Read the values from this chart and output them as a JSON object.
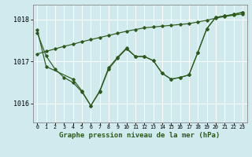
{
  "bg_color": "#d0eaed",
  "grid_color": "#ffffff",
  "line_color": "#2d5a1b",
  "title": "Graphe pression niveau de la mer (hPa)",
  "title_fontsize": 6.5,
  "xlim": [
    -0.5,
    23.5
  ],
  "ylim": [
    1015.55,
    1018.35
  ],
  "yticks": [
    1016,
    1017,
    1018
  ],
  "ytick_labels": [
    "1016",
    "1017",
    "1018"
  ],
  "xticks": [
    0,
    1,
    2,
    3,
    4,
    5,
    6,
    7,
    8,
    9,
    10,
    11,
    12,
    13,
    14,
    15,
    16,
    17,
    18,
    19,
    20,
    21,
    22,
    23
  ],
  "line_a_x": [
    0,
    1,
    2,
    3,
    4,
    5,
    6,
    7,
    8,
    9,
    10,
    11,
    12,
    13,
    14,
    15,
    16,
    17,
    18,
    19,
    20,
    21,
    22,
    23
  ],
  "line_a_y": [
    1017.18,
    1017.24,
    1017.3,
    1017.36,
    1017.41,
    1017.47,
    1017.52,
    1017.57,
    1017.62,
    1017.67,
    1017.72,
    1017.76,
    1017.8,
    1017.82,
    1017.84,
    1017.86,
    1017.88,
    1017.9,
    1017.94,
    1017.98,
    1018.03,
    1018.07,
    1018.1,
    1018.13
  ],
  "line_b_x": [
    0,
    1,
    2,
    3,
    4,
    5,
    6,
    7,
    8,
    9,
    10,
    11,
    12,
    13,
    14,
    15,
    16,
    17,
    18,
    19,
    20,
    21,
    22,
    23
  ],
  "line_b_y": [
    1017.68,
    1017.13,
    1016.82,
    1016.62,
    1016.5,
    1016.28,
    1015.95,
    1016.28,
    1016.82,
    1017.08,
    1017.3,
    1017.12,
    1017.12,
    1017.02,
    1016.72,
    1016.58,
    1016.62,
    1016.68,
    1017.22,
    1017.78,
    1018.05,
    1018.08,
    1018.12,
    1018.17
  ],
  "line_c_x": [
    0,
    1,
    4,
    5,
    6,
    7,
    8,
    9,
    10,
    11,
    12,
    13,
    14,
    15,
    16,
    17,
    18,
    19,
    20,
    21,
    22,
    23
  ],
  "line_c_y": [
    1017.75,
    1016.88,
    1016.58,
    1016.3,
    1015.95,
    1016.3,
    1016.85,
    1017.1,
    1017.32,
    1017.12,
    1017.12,
    1017.02,
    1016.72,
    1016.58,
    1016.62,
    1016.68,
    1017.22,
    1017.78,
    1018.05,
    1018.08,
    1018.12,
    1018.17
  ]
}
